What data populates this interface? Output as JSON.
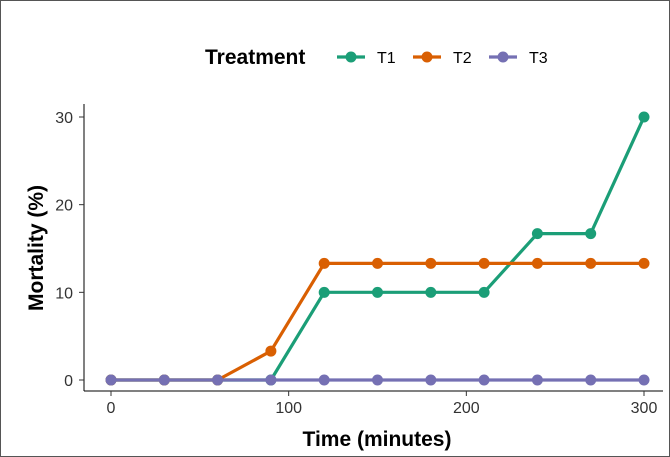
{
  "chart_data": {
    "type": "line",
    "xlabel": "Time (minutes)",
    "ylabel": "Mortality (%)",
    "xlim": [
      0,
      300
    ],
    "ylim": [
      0,
      30
    ],
    "xticks": [
      0,
      100,
      200,
      300
    ],
    "yticks": [
      0,
      10,
      20,
      30
    ],
    "grid": false,
    "legend": {
      "title": "Treatment",
      "position": "top"
    },
    "x": [
      0,
      30,
      60,
      90,
      120,
      150,
      180,
      210,
      240,
      270,
      300
    ],
    "series": [
      {
        "name": "T1",
        "color": "#1b9e77",
        "values": [
          0,
          0,
          0,
          0,
          10,
          10,
          10,
          10,
          16.7,
          16.7,
          30
        ]
      },
      {
        "name": "T2",
        "color": "#d95f02",
        "values": [
          0,
          0,
          0,
          3.3,
          13.3,
          13.3,
          13.3,
          13.3,
          13.3,
          13.3,
          13.3
        ]
      },
      {
        "name": "T3",
        "color": "#7570b3",
        "values": [
          0,
          0,
          0,
          0,
          0,
          0,
          0,
          0,
          0,
          0,
          0
        ]
      }
    ]
  }
}
